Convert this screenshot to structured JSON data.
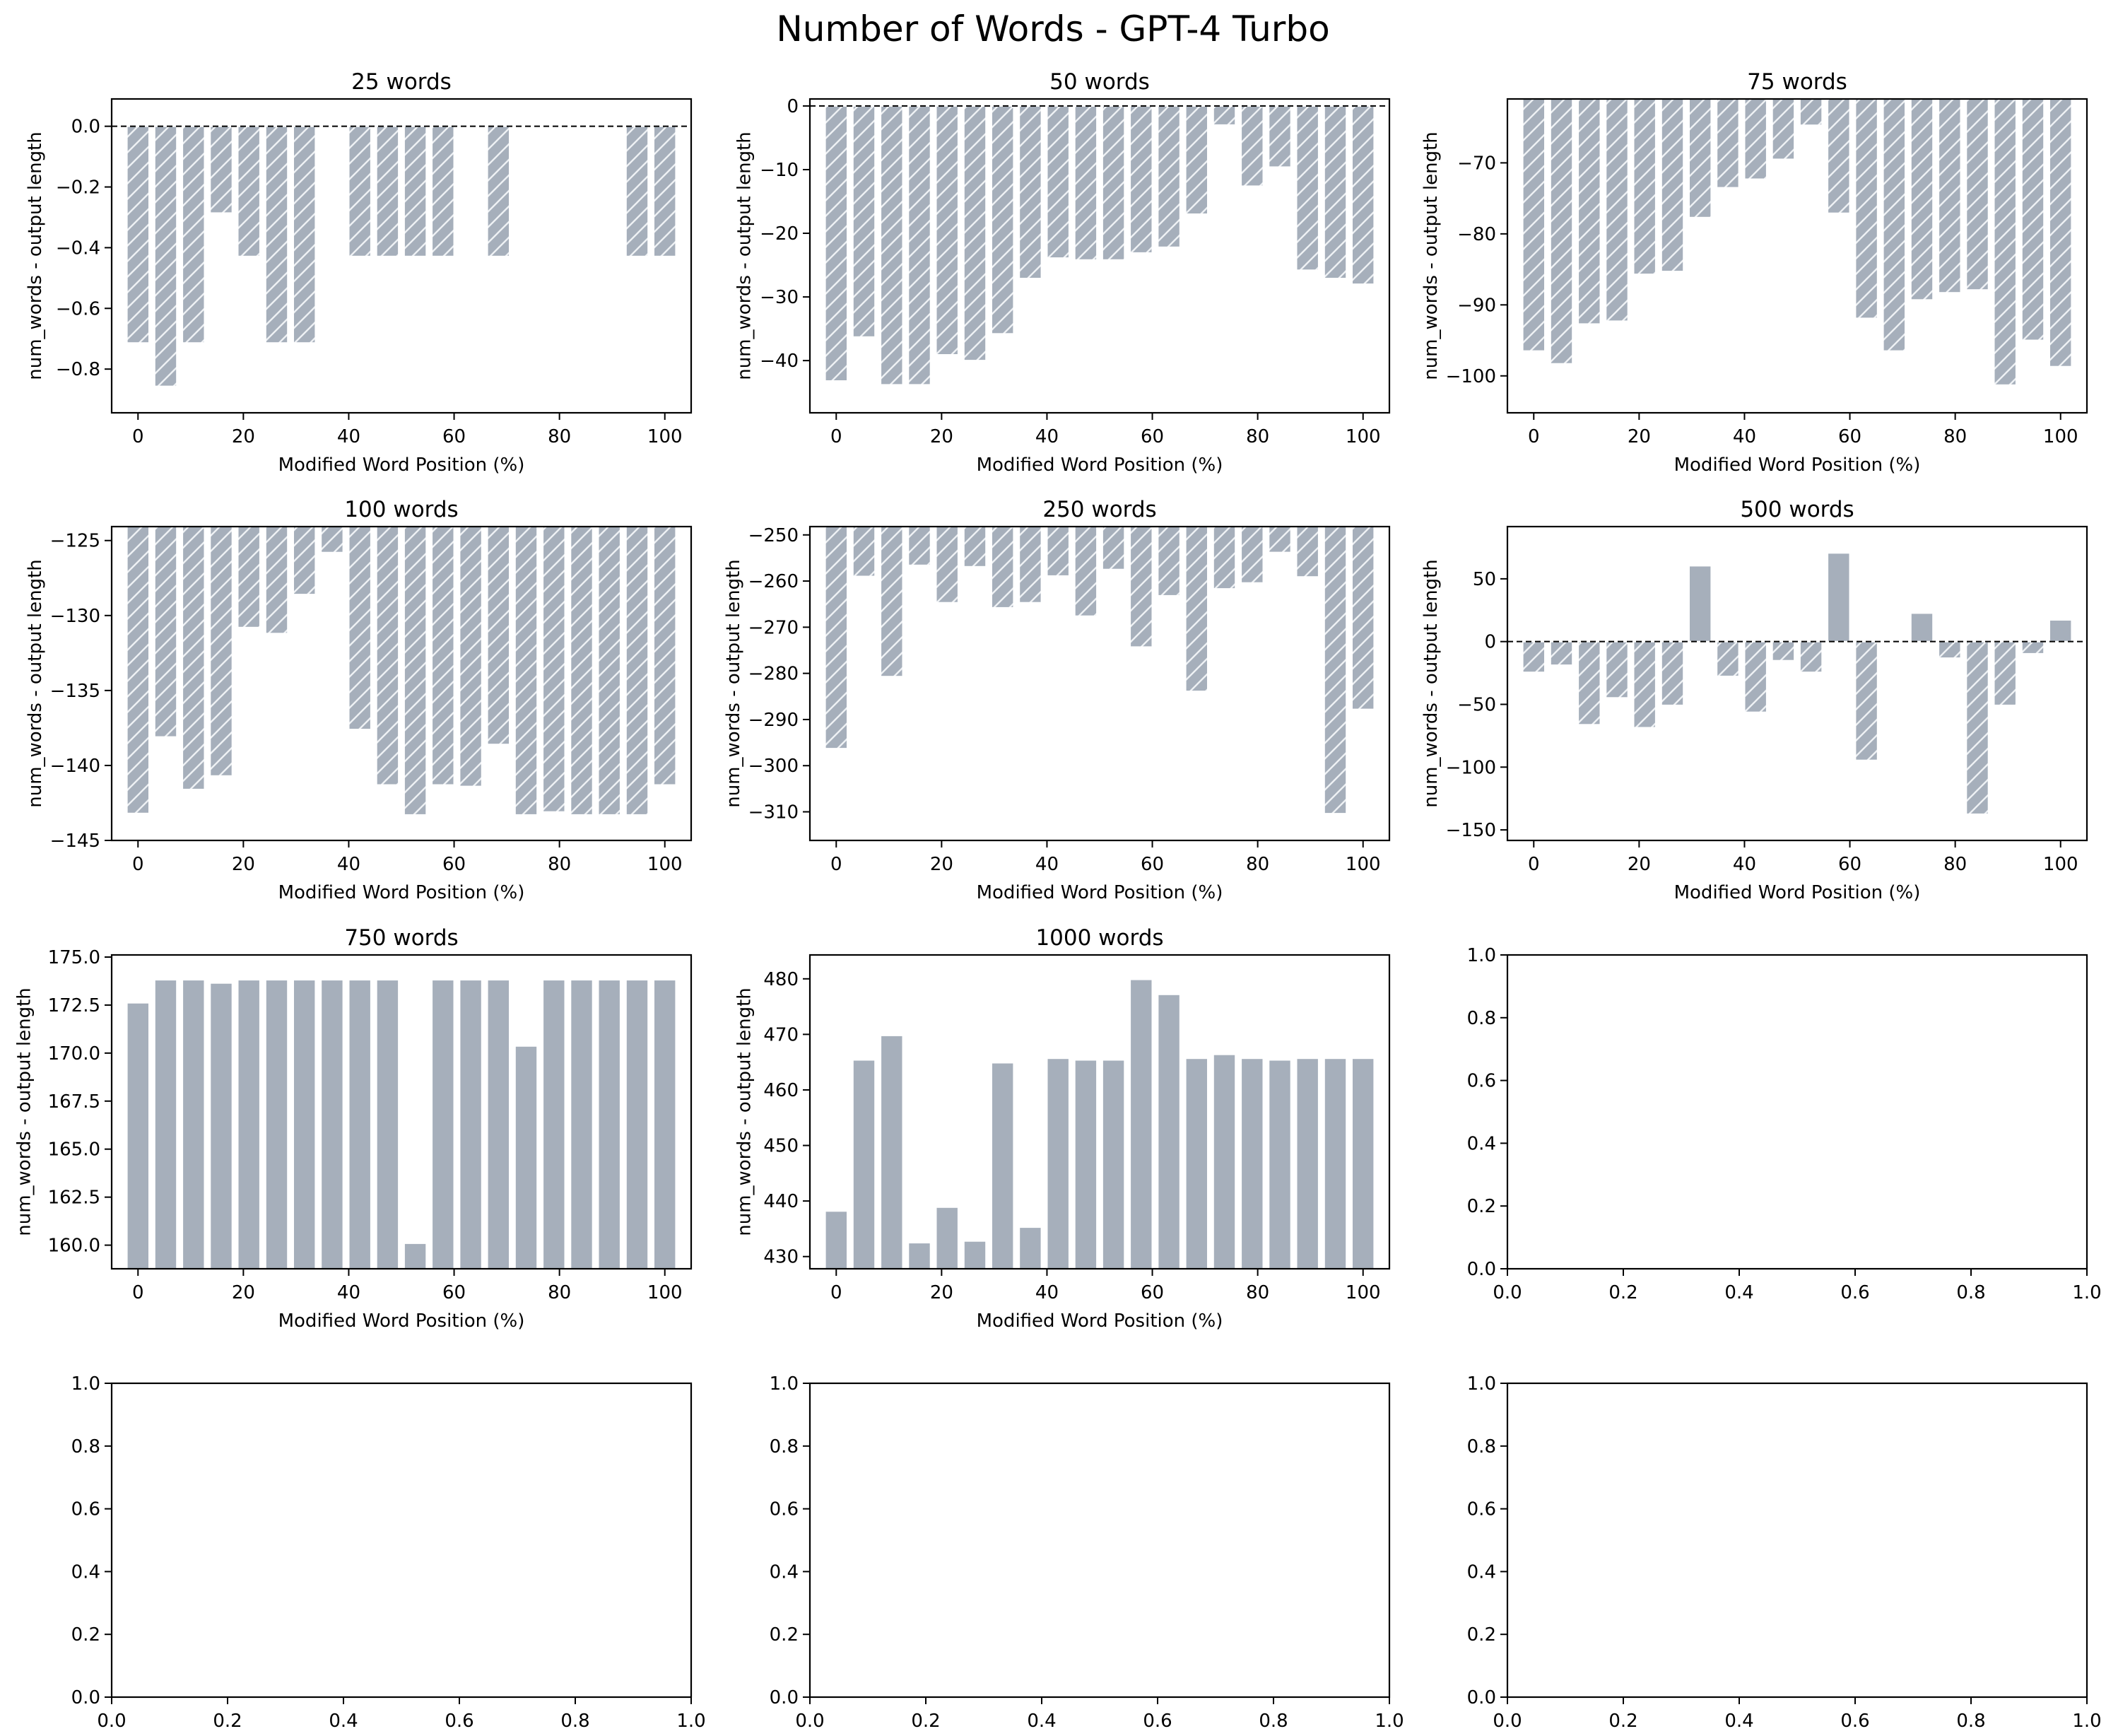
{
  "chart_data": {
    "title": "Number of Words - GPT-4 Turbo",
    "type": "bar",
    "layout": "4x3 grid",
    "bar_color": "#a6afbb",
    "hatch_color": "#eef1f4",
    "hatch_rule": "negative bars hatched (//), non-negative bars solid",
    "x": [
      0,
      5.26,
      10.53,
      15.79,
      21.05,
      26.32,
      31.58,
      36.84,
      42.11,
      47.37,
      52.63,
      57.89,
      63.16,
      68.42,
      73.68,
      78.95,
      84.21,
      89.47,
      94.74,
      100
    ],
    "subplots": [
      {
        "title": "25 words",
        "xlabel": "Modified Word Position (%)",
        "ylabel": "num_words - output length",
        "xlim": [
          -5,
          105
        ],
        "ylim": [
          -0.944,
          0.09
        ],
        "xticks": [
          0,
          20,
          40,
          60,
          80,
          100
        ],
        "yticks": [
          0.0,
          -0.2,
          -0.4,
          -0.6,
          -0.8
        ],
        "ytick_labels": [
          "0.0",
          "−0.2",
          "−0.4",
          "−0.6",
          "−0.8"
        ],
        "zero_line": true,
        "values": [
          -0.714,
          -0.857,
          -0.714,
          -0.286,
          -0.429,
          -0.714,
          -0.714,
          0,
          -0.429,
          -0.429,
          -0.429,
          -0.429,
          0,
          -0.429,
          0,
          0,
          0,
          0,
          -0.429,
          -0.429
        ]
      },
      {
        "title": "50 words",
        "xlabel": "Modified Word Position (%)",
        "ylabel": "num_words - output length",
        "xlim": [
          -5,
          105
        ],
        "ylim": [
          -48.2,
          1.1
        ],
        "xticks": [
          0,
          20,
          40,
          60,
          80,
          100
        ],
        "yticks": [
          0,
          -10,
          -20,
          -30,
          -40
        ],
        "ytick_labels": [
          "0",
          "−10",
          "−20",
          "−30",
          "−40"
        ],
        "zero_line": true,
        "values": [
          -43.2,
          -36.3,
          -43.8,
          -43.8,
          -39.1,
          -40.0,
          -35.8,
          -27.1,
          -23.9,
          -24.2,
          -24.2,
          -23.1,
          -22.2,
          -17.0,
          -3.0,
          -12.6,
          -9.6,
          -25.8,
          -27.1,
          -28.0
        ]
      },
      {
        "title": "75 words",
        "xlabel": "Modified Word Position (%)",
        "ylabel": "num_words - output length",
        "xlim": [
          -5,
          105
        ],
        "ylim": [
          -105.2,
          -61.0
        ],
        "xticks": [
          0,
          20,
          40,
          60,
          80,
          100
        ],
        "yticks": [
          -70,
          -80,
          -90,
          -100
        ],
        "ytick_labels": [
          "−70",
          "−80",
          "−90",
          "−100"
        ],
        "zero_line": false,
        "values": [
          -96.5,
          -98.3,
          -92.7,
          -92.3,
          -85.7,
          -85.3,
          -77.7,
          -73.5,
          -72.3,
          -69.5,
          -64.7,
          -77.1,
          -91.9,
          -96.5,
          -89.3,
          -88.3,
          -87.9,
          -101.3,
          -95.0,
          -98.7
        ]
      },
      {
        "title": "100 words",
        "xlabel": "Modified Word Position (%)",
        "ylabel": "num_words - output length",
        "xlim": [
          -5,
          105
        ],
        "ylim": [
          -145.0,
          -124.07
        ],
        "xticks": [
          0,
          20,
          40,
          60,
          80,
          100
        ],
        "yticks": [
          -125,
          -130,
          -135,
          -140,
          -145
        ],
        "ytick_labels": [
          "−125",
          "−130",
          "−135",
          "−140",
          "−145"
        ],
        "zero_line": false,
        "values": [
          -143.2,
          -138.1,
          -141.6,
          -140.7,
          -130.8,
          -131.2,
          -128.6,
          -125.8,
          -137.6,
          -141.3,
          -143.3,
          -141.3,
          -141.4,
          -138.6,
          -143.3,
          -143.1,
          -143.3,
          -143.3,
          -143.3,
          -141.3
        ]
      },
      {
        "title": "250 words",
        "xlabel": "Modified Word Position (%)",
        "ylabel": "num_words - output length",
        "xlim": [
          -5,
          105
        ],
        "ylim": [
          -316.2,
          -248.2
        ],
        "xticks": [
          0,
          20,
          40,
          60,
          80,
          100
        ],
        "yticks": [
          -250,
          -260,
          -270,
          -280,
          -290,
          -300,
          -310
        ],
        "ytick_labels": [
          "−250",
          "−260",
          "−270",
          "−280",
          "−290",
          "−300",
          "−310"
        ],
        "zero_line": false,
        "values": [
          -296.3,
          -259.0,
          -280.7,
          -256.6,
          -264.7,
          -256.9,
          -265.8,
          -264.7,
          -258.9,
          -267.6,
          -257.5,
          -274.3,
          -263.2,
          -283.9,
          -261.7,
          -260.4,
          -253.8,
          -259.1,
          -310.4,
          -287.8
        ]
      },
      {
        "title": "500 words",
        "xlabel": "Modified Word Position (%)",
        "ylabel": "num_words - output length",
        "xlim": [
          -5,
          105
        ],
        "ylim": [
          -158.4,
          91.6
        ],
        "xticks": [
          0,
          20,
          40,
          60,
          80,
          100
        ],
        "yticks": [
          50,
          0,
          -50,
          -100,
          -150
        ],
        "ytick_labels": [
          "50",
          "0",
          "−50",
          "−100",
          "−150"
        ],
        "zero_line": true,
        "values": [
          -24.5,
          -18.8,
          -66.2,
          -44.8,
          -68.6,
          -50.8,
          60.4,
          -27.7,
          -56.3,
          -15.2,
          -24.5,
          70.6,
          -94.6,
          -1.1,
          22.7,
          -13.2,
          -137.5,
          -50.8,
          -9.7,
          17.3
        ]
      },
      {
        "title": "750 words",
        "xlabel": "Modified Word Position (%)",
        "ylabel": "num_words - output length",
        "xlim": [
          -5,
          105
        ],
        "ylim": [
          158.77,
          175.11
        ],
        "xticks": [
          0,
          20,
          40,
          60,
          80,
          100
        ],
        "yticks": [
          175.0,
          172.5,
          170.0,
          167.5,
          165.0,
          162.5,
          160.0
        ],
        "ytick_labels": [
          "175.0",
          "172.5",
          "170.0",
          "167.5",
          "165.0",
          "162.5",
          "160.0"
        ],
        "zero_line": false,
        "values": [
          172.62,
          173.82,
          173.82,
          173.65,
          173.82,
          173.82,
          173.82,
          173.82,
          173.82,
          173.82,
          160.1,
          173.82,
          173.82,
          173.82,
          170.37,
          173.82,
          173.82,
          173.82,
          173.82,
          173.82
        ]
      },
      {
        "title": "1000 words",
        "xlabel": "Modified Word Position (%)",
        "ylabel": "num_words - output length",
        "xlim": [
          -5,
          105
        ],
        "ylim": [
          427.8,
          484.3
        ],
        "xticks": [
          0,
          20,
          40,
          60,
          80,
          100
        ],
        "yticks": [
          480,
          470,
          460,
          450,
          440,
          430
        ],
        "ytick_labels": [
          "480",
          "470",
          "460",
          "450",
          "440",
          "430"
        ],
        "zero_line": false,
        "values": [
          438.2,
          465.4,
          469.8,
          432.5,
          438.9,
          432.8,
          464.9,
          435.3,
          465.7,
          465.4,
          465.4,
          479.9,
          477.2,
          465.7,
          466.4,
          465.7,
          465.4,
          465.7,
          465.7,
          465.7
        ]
      },
      {
        "title": "",
        "xlabel": "",
        "ylabel": "",
        "empty": true,
        "xlim": [
          0,
          1
        ],
        "ylim": [
          0,
          1
        ],
        "xticks": [
          0.0,
          0.2,
          0.4,
          0.6,
          0.8,
          1.0
        ],
        "xtick_labels": [
          "0.0",
          "0.2",
          "0.4",
          "0.6",
          "0.8",
          "1.0"
        ],
        "yticks": [
          0.0,
          0.2,
          0.4,
          0.6,
          0.8,
          1.0
        ],
        "ytick_labels": [
          "0.0",
          "0.2",
          "0.4",
          "0.6",
          "0.8",
          "1.0"
        ],
        "values": []
      },
      {
        "title": "",
        "xlabel": "",
        "ylabel": "",
        "empty": true,
        "xlim": [
          0,
          1
        ],
        "ylim": [
          0,
          1
        ],
        "xticks": [
          0.0,
          0.2,
          0.4,
          0.6,
          0.8,
          1.0
        ],
        "xtick_labels": [
          "0.0",
          "0.2",
          "0.4",
          "0.6",
          "0.8",
          "1.0"
        ],
        "yticks": [
          0.0,
          0.2,
          0.4,
          0.6,
          0.8,
          1.0
        ],
        "ytick_labels": [
          "0.0",
          "0.2",
          "0.4",
          "0.6",
          "0.8",
          "1.0"
        ],
        "values": []
      },
      {
        "title": "",
        "xlabel": "",
        "ylabel": "",
        "empty": true,
        "xlim": [
          0,
          1
        ],
        "ylim": [
          0,
          1
        ],
        "xticks": [
          0.0,
          0.2,
          0.4,
          0.6,
          0.8,
          1.0
        ],
        "xtick_labels": [
          "0.0",
          "0.2",
          "0.4",
          "0.6",
          "0.8",
          "1.0"
        ],
        "yticks": [
          0.0,
          0.2,
          0.4,
          0.6,
          0.8,
          1.0
        ],
        "ytick_labels": [
          "0.0",
          "0.2",
          "0.4",
          "0.6",
          "0.8",
          "1.0"
        ],
        "values": []
      },
      {
        "title": "",
        "xlabel": "",
        "ylabel": "",
        "empty": true,
        "xlim": [
          0,
          1
        ],
        "ylim": [
          0,
          1
        ],
        "xticks": [
          0.0,
          0.2,
          0.4,
          0.6,
          0.8,
          1.0
        ],
        "xtick_labels": [
          "0.0",
          "0.2",
          "0.4",
          "0.6",
          "0.8",
          "1.0"
        ],
        "yticks": [
          0.0,
          0.2,
          0.4,
          0.6,
          0.8,
          1.0
        ],
        "ytick_labels": [
          "0.0",
          "0.2",
          "0.4",
          "0.6",
          "0.8",
          "1.0"
        ],
        "values": []
      }
    ]
  }
}
